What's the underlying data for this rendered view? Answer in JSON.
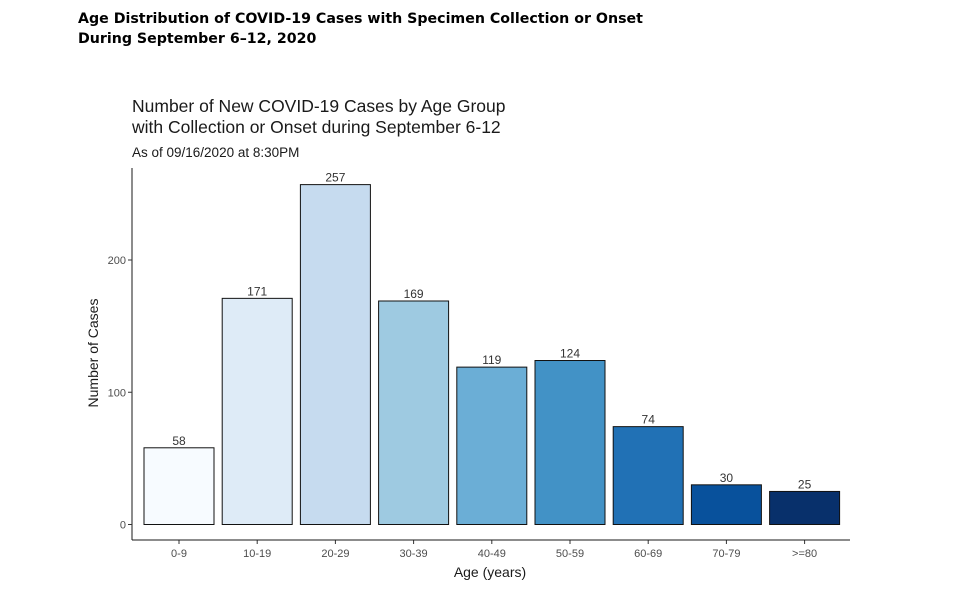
{
  "document": {
    "title_line1": "Age Distribution of COVID-19 Cases with Specimen Collection or Onset",
    "title_line2": "During September 6–12, 2020"
  },
  "chart_data": {
    "type": "bar",
    "title_line1": "Number of New COVID-19 Cases by Age Group",
    "title_line2": "with Collection or Onset during September 6-12",
    "subtitle": "As of 09/16/2020 at 8:30PM",
    "xlabel": "Age (years)",
    "ylabel": "Number of Cases",
    "categories": [
      "0-9",
      "10-19",
      "20-29",
      "30-39",
      "40-49",
      "50-59",
      "60-69",
      "70-79",
      ">=80"
    ],
    "values": [
      58,
      171,
      257,
      169,
      119,
      124,
      74,
      30,
      25
    ],
    "colors": [
      "#f7fbff",
      "#deebf7",
      "#c6dbef",
      "#9ecae1",
      "#6baed6",
      "#4292c6",
      "#2171b5",
      "#08519c",
      "#08306b"
    ],
    "yticks": [
      0,
      100,
      200
    ],
    "ylim": [
      0,
      270
    ],
    "grid": false,
    "legend": "none"
  }
}
